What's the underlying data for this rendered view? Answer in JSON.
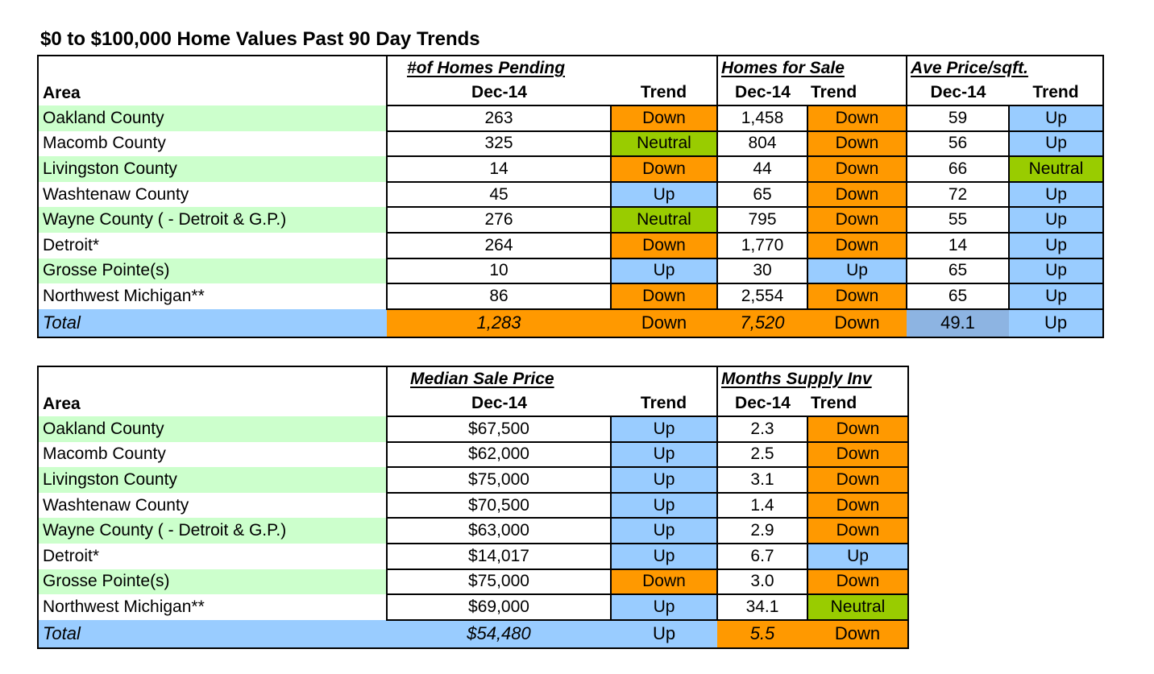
{
  "title": "$0 to $100,000 Home Values Past 90 Day Trends",
  "colors": {
    "down": "#ff9900",
    "up": "#99ccff",
    "neutral": "#99cc00",
    "area_highlight": "#ccffcc",
    "total_row": "#99ccff"
  },
  "table1": {
    "group_headers": {
      "pending": "#of Homes Pending",
      "for_sale": "Homes for Sale",
      "price_sqft": "Ave Price/sqft."
    },
    "col_headers": {
      "area": "Area",
      "pending_month": "Dec-14",
      "pending_trend": "Trend",
      "sale_month": "Dec-14",
      "sale_trend": "Trend",
      "price_month": "Dec-14",
      "price_trend": "Trend"
    },
    "rows": [
      {
        "area": "Oakland County",
        "pending": "263",
        "pending_trend": "Down",
        "for_sale": "1,458",
        "sale_trend": "Down",
        "price": "59",
        "price_trend": "Up"
      },
      {
        "area": "Macomb County",
        "pending": "325",
        "pending_trend": "Neutral",
        "for_sale": "804",
        "sale_trend": "Down",
        "price": "56",
        "price_trend": "Up"
      },
      {
        "area": "Livingston County",
        "pending": "14",
        "pending_trend": "Down",
        "for_sale": "44",
        "sale_trend": "Down",
        "price": "66",
        "price_trend": "Neutral"
      },
      {
        "area": "Washtenaw County",
        "pending": "45",
        "pending_trend": "Up",
        "for_sale": "65",
        "sale_trend": "Down",
        "price": "72",
        "price_trend": "Up"
      },
      {
        "area": "Wayne County ( - Detroit & G.P.)",
        "pending": "276",
        "pending_trend": "Neutral",
        "for_sale": "795",
        "sale_trend": "Down",
        "price": "55",
        "price_trend": "Up"
      },
      {
        "area": "Detroit*",
        "pending": "264",
        "pending_trend": "Down",
        "for_sale": "1,770",
        "sale_trend": "Down",
        "price": "14",
        "price_trend": "Up"
      },
      {
        "area": "Grosse Pointe(s)",
        "pending": "10",
        "pending_trend": "Up",
        "for_sale": "30",
        "sale_trend": "Up",
        "price": "65",
        "price_trend": "Up"
      },
      {
        "area": "Northwest Michigan**",
        "pending": "86",
        "pending_trend": "Down",
        "for_sale": "2,554",
        "sale_trend": "Down",
        "price": "65",
        "price_trend": "Up"
      }
    ],
    "total": {
      "label": "Total",
      "pending": "1,283",
      "pending_trend": "Down",
      "for_sale": "7,520",
      "sale_trend": "Down",
      "price": "49.1",
      "price_trend": "Up"
    }
  },
  "table2": {
    "group_headers": {
      "median": "Median Sale Price",
      "supply": "Months Supply Inv"
    },
    "col_headers": {
      "area": "Area",
      "median_month": "Dec-14",
      "median_trend": "Trend",
      "supply_month": "Dec-14",
      "supply_trend": "Trend"
    },
    "rows": [
      {
        "area": "Oakland County",
        "median": "$67,500",
        "median_trend": "Up",
        "supply": "2.3",
        "supply_trend": "Down"
      },
      {
        "area": "Macomb County",
        "median": "$62,000",
        "median_trend": "Up",
        "supply": "2.5",
        "supply_trend": "Down"
      },
      {
        "area": "Livingston County",
        "median": "$75,000",
        "median_trend": "Up",
        "supply": "3.1",
        "supply_trend": "Down"
      },
      {
        "area": "Washtenaw County",
        "median": "$70,500",
        "median_trend": "Up",
        "supply": "1.4",
        "supply_trend": "Down"
      },
      {
        "area": "Wayne County ( - Detroit & G.P.)",
        "median": "$63,000",
        "median_trend": "Up",
        "supply": "2.9",
        "supply_trend": "Down"
      },
      {
        "area": "Detroit*",
        "median": "$14,017",
        "median_trend": "Up",
        "supply": "6.7",
        "supply_trend": "Up"
      },
      {
        "area": "Grosse Pointe(s)",
        "median": "$75,000",
        "median_trend": "Down",
        "supply": "3.0",
        "supply_trend": "Down"
      },
      {
        "area": "Northwest Michigan**",
        "median": "$69,000",
        "median_trend": "Up",
        "supply": "34.1",
        "supply_trend": "Neutral"
      }
    ],
    "total": {
      "label": "Total",
      "median": "$54,480",
      "median_trend": "Up",
      "supply": "5.5",
      "supply_trend": "Down"
    }
  }
}
